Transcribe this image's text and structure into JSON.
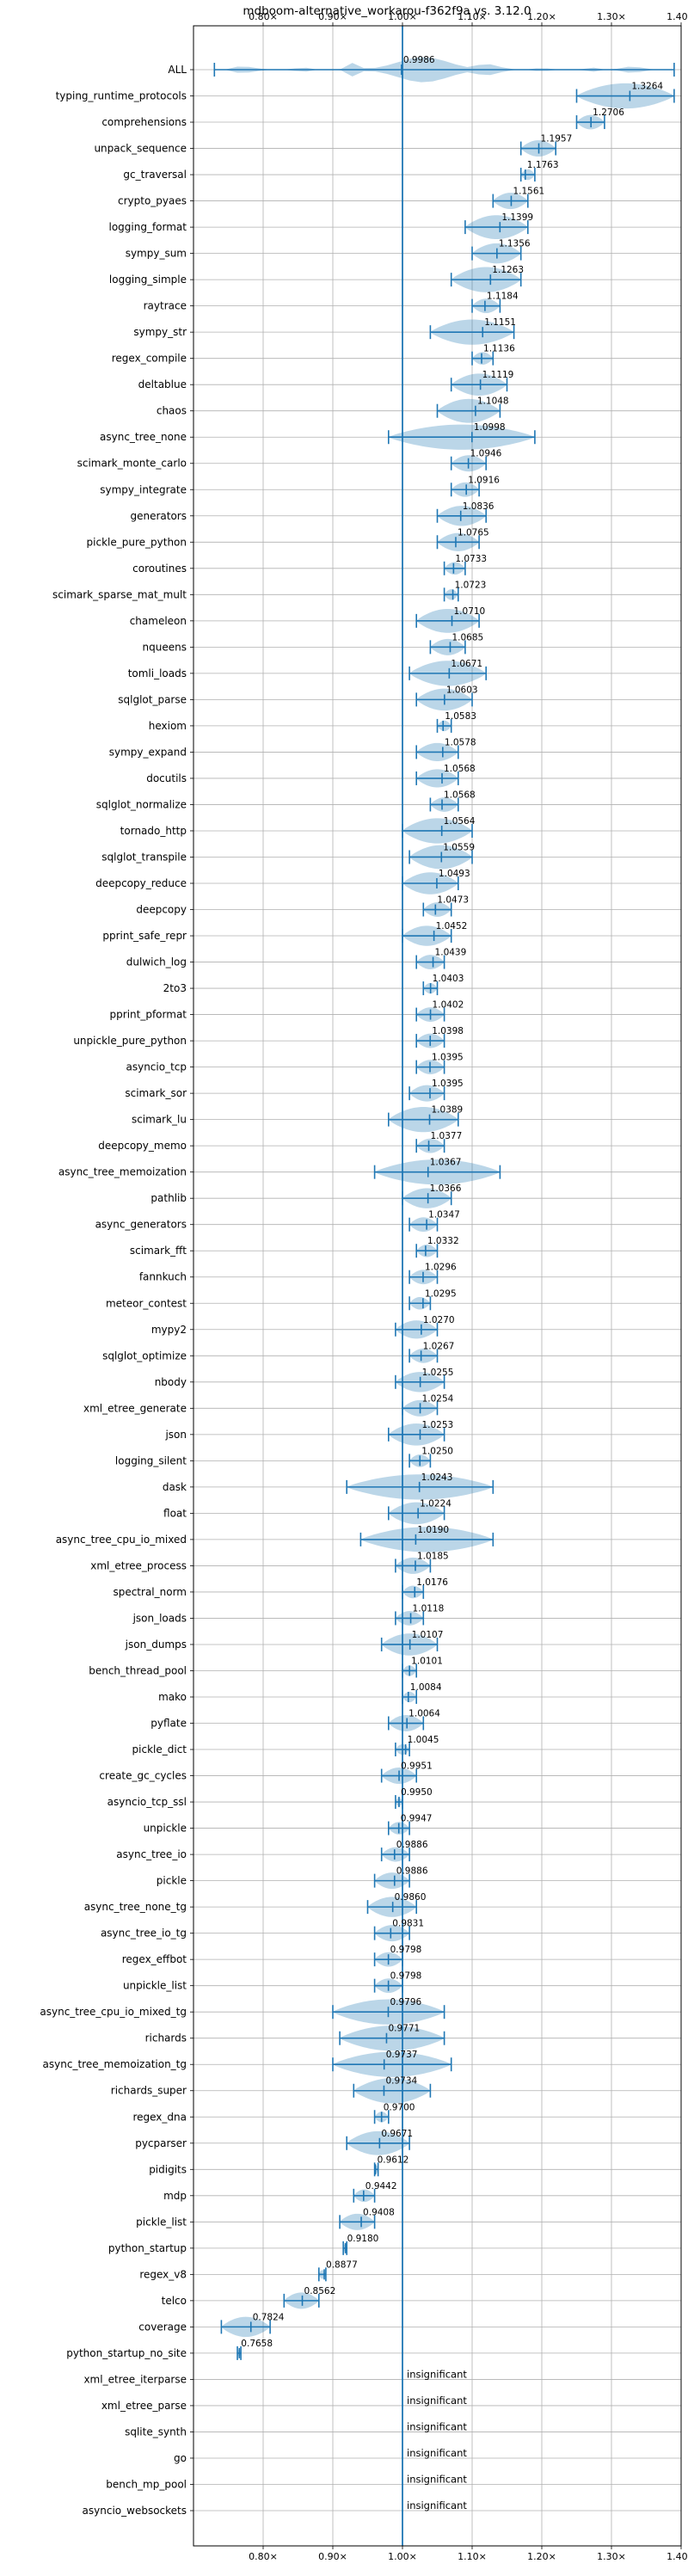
{
  "chart_data": {
    "type": "violin",
    "title": "mdboom-alternative_workarou-f362f9a vs. 3.12.0",
    "xlim": [
      0.7,
      1.4
    ],
    "x_ticks": [
      {
        "value": 0.8,
        "label": "0.80×"
      },
      {
        "value": 0.9,
        "label": "0.90×"
      },
      {
        "value": 1.0,
        "label": "1.00×"
      },
      {
        "value": 1.1,
        "label": "1.10×"
      },
      {
        "value": 1.2,
        "label": "1.20×"
      },
      {
        "value": 1.3,
        "label": "1.30×"
      },
      {
        "value": 1.4,
        "label": "1.40×"
      }
    ],
    "x_axis_position": "top and bottom",
    "grid": true,
    "reference_line": 1.0,
    "insignificant_label": "insignificant",
    "benchmarks": [
      {
        "name": "ALL",
        "value": 0.9986,
        "label": "0.9986",
        "min": 0.73,
        "max": 1.39,
        "spread": 0.05,
        "kind": "all"
      },
      {
        "name": "typing_runtime_protocols",
        "value": 1.3264,
        "label": "1.3264",
        "min": 1.25,
        "max": 1.39,
        "spread": 0.05
      },
      {
        "name": "comprehensions",
        "value": 1.2706,
        "label": "1.2706",
        "min": 1.25,
        "max": 1.29,
        "spread": 0.05
      },
      {
        "name": "unpack_sequence",
        "value": 1.1957,
        "label": "1.1957",
        "min": 1.17,
        "max": 1.22,
        "spread": 0.05
      },
      {
        "name": "gc_traversal",
        "value": 1.1763,
        "label": "1.1763",
        "min": 1.17,
        "max": 1.19,
        "spread": 0.05
      },
      {
        "name": "crypto_pyaes",
        "value": 1.1561,
        "label": "1.1561",
        "min": 1.13,
        "max": 1.18,
        "spread": 0.05
      },
      {
        "name": "logging_format",
        "value": 1.1399,
        "label": "1.1399",
        "min": 1.09,
        "max": 1.18,
        "spread": 0.05
      },
      {
        "name": "sympy_sum",
        "value": 1.1356,
        "label": "1.1356",
        "min": 1.1,
        "max": 1.17,
        "spread": 0.05
      },
      {
        "name": "logging_simple",
        "value": 1.1263,
        "label": "1.1263",
        "min": 1.07,
        "max": 1.17,
        "spread": 0.05
      },
      {
        "name": "raytrace",
        "value": 1.1184,
        "label": "1.1184",
        "min": 1.1,
        "max": 1.14,
        "spread": 0.05
      },
      {
        "name": "sympy_str",
        "value": 1.1151,
        "label": "1.1151",
        "min": 1.04,
        "max": 1.16,
        "spread": 0.05
      },
      {
        "name": "regex_compile",
        "value": 1.1136,
        "label": "1.1136",
        "min": 1.1,
        "max": 1.13,
        "spread": 0.05
      },
      {
        "name": "deltablue",
        "value": 1.1119,
        "label": "1.1119",
        "min": 1.07,
        "max": 1.15,
        "spread": 0.05
      },
      {
        "name": "chaos",
        "value": 1.1048,
        "label": "1.1048",
        "min": 1.05,
        "max": 1.14,
        "spread": 0.05
      },
      {
        "name": "async_tree_none",
        "value": 1.0998,
        "label": "1.0998",
        "min": 0.98,
        "max": 1.19,
        "spread": 0.05
      },
      {
        "name": "scimark_monte_carlo",
        "value": 1.0946,
        "label": "1.0946",
        "min": 1.07,
        "max": 1.12,
        "spread": 0.05
      },
      {
        "name": "sympy_integrate",
        "value": 1.0916,
        "label": "1.0916",
        "min": 1.07,
        "max": 1.11,
        "spread": 0.05
      },
      {
        "name": "generators",
        "value": 1.0836,
        "label": "1.0836",
        "min": 1.05,
        "max": 1.12,
        "spread": 0.05
      },
      {
        "name": "pickle_pure_python",
        "value": 1.0765,
        "label": "1.0765",
        "min": 1.05,
        "max": 1.11,
        "spread": 0.05
      },
      {
        "name": "coroutines",
        "value": 1.0733,
        "label": "1.0733",
        "min": 1.06,
        "max": 1.09,
        "spread": 0.05
      },
      {
        "name": "scimark_sparse_mat_mult",
        "value": 1.0723,
        "label": "1.0723",
        "min": 1.06,
        "max": 1.08,
        "spread": 0.05
      },
      {
        "name": "chameleon",
        "value": 1.071,
        "label": "1.0710",
        "min": 1.02,
        "max": 1.11,
        "spread": 0.05
      },
      {
        "name": "nqueens",
        "value": 1.0685,
        "label": "1.0685",
        "min": 1.04,
        "max": 1.09,
        "spread": 0.05
      },
      {
        "name": "tomli_loads",
        "value": 1.0671,
        "label": "1.0671",
        "min": 1.01,
        "max": 1.12,
        "spread": 0.05
      },
      {
        "name": "sqlglot_parse",
        "value": 1.0603,
        "label": "1.0603",
        "min": 1.02,
        "max": 1.1,
        "spread": 0.05
      },
      {
        "name": "hexiom",
        "value": 1.0583,
        "label": "1.0583",
        "min": 1.05,
        "max": 1.07,
        "spread": 0.05
      },
      {
        "name": "sympy_expand",
        "value": 1.0578,
        "label": "1.0578",
        "min": 1.02,
        "max": 1.08,
        "spread": 0.05
      },
      {
        "name": "docutils",
        "value": 1.0568,
        "label": "1.0568",
        "min": 1.02,
        "max": 1.08,
        "spread": 0.05
      },
      {
        "name": "sqlglot_normalize",
        "value": 1.0568,
        "label": "1.0568",
        "min": 1.04,
        "max": 1.08,
        "spread": 0.05
      },
      {
        "name": "tornado_http",
        "value": 1.0564,
        "label": "1.0564",
        "min": 1.0,
        "max": 1.1,
        "spread": 0.05
      },
      {
        "name": "sqlglot_transpile",
        "value": 1.0559,
        "label": "1.0559",
        "min": 1.01,
        "max": 1.1,
        "spread": 0.05
      },
      {
        "name": "deepcopy_reduce",
        "value": 1.0493,
        "label": "1.0493",
        "min": 1.0,
        "max": 1.08,
        "spread": 0.05
      },
      {
        "name": "deepcopy",
        "value": 1.0473,
        "label": "1.0473",
        "min": 1.03,
        "max": 1.07,
        "spread": 0.05
      },
      {
        "name": "pprint_safe_repr",
        "value": 1.0452,
        "label": "1.0452",
        "min": 1.0,
        "max": 1.07,
        "spread": 0.05
      },
      {
        "name": "dulwich_log",
        "value": 1.0439,
        "label": "1.0439",
        "min": 1.02,
        "max": 1.06,
        "spread": 0.05
      },
      {
        "name": "2to3",
        "value": 1.0403,
        "label": "1.0403",
        "min": 1.03,
        "max": 1.05,
        "spread": 0.05
      },
      {
        "name": "pprint_pformat",
        "value": 1.0402,
        "label": "1.0402",
        "min": 1.02,
        "max": 1.06,
        "spread": 0.05
      },
      {
        "name": "unpickle_pure_python",
        "value": 1.0398,
        "label": "1.0398",
        "min": 1.02,
        "max": 1.06,
        "spread": 0.05
      },
      {
        "name": "asyncio_tcp",
        "value": 1.0395,
        "label": "1.0395",
        "min": 1.02,
        "max": 1.06,
        "spread": 0.05
      },
      {
        "name": "scimark_sor",
        "value": 1.0395,
        "label": "1.0395",
        "min": 1.01,
        "max": 1.06,
        "spread": 0.05
      },
      {
        "name": "scimark_lu",
        "value": 1.0389,
        "label": "1.0389",
        "min": 0.98,
        "max": 1.08,
        "spread": 0.05
      },
      {
        "name": "deepcopy_memo",
        "value": 1.0377,
        "label": "1.0377",
        "min": 1.02,
        "max": 1.06,
        "spread": 0.05
      },
      {
        "name": "async_tree_memoization",
        "value": 1.0367,
        "label": "1.0367",
        "min": 0.96,
        "max": 1.14,
        "spread": 0.05
      },
      {
        "name": "pathlib",
        "value": 1.0366,
        "label": "1.0366",
        "min": 1.0,
        "max": 1.07,
        "spread": 0.05
      },
      {
        "name": "async_generators",
        "value": 1.0347,
        "label": "1.0347",
        "min": 1.01,
        "max": 1.05,
        "spread": 0.05
      },
      {
        "name": "scimark_fft",
        "value": 1.0332,
        "label": "1.0332",
        "min": 1.02,
        "max": 1.05,
        "spread": 0.05
      },
      {
        "name": "fannkuch",
        "value": 1.0296,
        "label": "1.0296",
        "min": 1.01,
        "max": 1.05,
        "spread": 0.05
      },
      {
        "name": "meteor_contest",
        "value": 1.0295,
        "label": "1.0295",
        "min": 1.01,
        "max": 1.04,
        "spread": 0.05
      },
      {
        "name": "mypy2",
        "value": 1.027,
        "label": "1.0270",
        "min": 0.99,
        "max": 1.05,
        "spread": 0.05
      },
      {
        "name": "sqlglot_optimize",
        "value": 1.0267,
        "label": "1.0267",
        "min": 1.01,
        "max": 1.05,
        "spread": 0.05
      },
      {
        "name": "nbody",
        "value": 1.0255,
        "label": "1.0255",
        "min": 0.99,
        "max": 1.06,
        "spread": 0.05
      },
      {
        "name": "xml_etree_generate",
        "value": 1.0254,
        "label": "1.0254",
        "min": 1.0,
        "max": 1.05,
        "spread": 0.05
      },
      {
        "name": "json",
        "value": 1.0253,
        "label": "1.0253",
        "min": 0.98,
        "max": 1.06,
        "spread": 0.05
      },
      {
        "name": "logging_silent",
        "value": 1.025,
        "label": "1.0250",
        "min": 1.01,
        "max": 1.04,
        "spread": 0.05
      },
      {
        "name": "dask",
        "value": 1.0243,
        "label": "1.0243",
        "min": 0.92,
        "max": 1.13,
        "spread": 0.05
      },
      {
        "name": "float",
        "value": 1.0224,
        "label": "1.0224",
        "min": 0.98,
        "max": 1.06,
        "spread": 0.05
      },
      {
        "name": "async_tree_cpu_io_mixed",
        "value": 1.019,
        "label": "1.0190",
        "min": 0.94,
        "max": 1.13,
        "spread": 0.05
      },
      {
        "name": "xml_etree_process",
        "value": 1.0185,
        "label": "1.0185",
        "min": 0.99,
        "max": 1.04,
        "spread": 0.05
      },
      {
        "name": "spectral_norm",
        "value": 1.0176,
        "label": "1.0176",
        "min": 1.0,
        "max": 1.03,
        "spread": 0.05
      },
      {
        "name": "json_loads",
        "value": 1.0118,
        "label": "1.0118",
        "min": 0.99,
        "max": 1.03,
        "spread": 0.05
      },
      {
        "name": "json_dumps",
        "value": 1.0107,
        "label": "1.0107",
        "min": 0.97,
        "max": 1.05,
        "spread": 0.05
      },
      {
        "name": "bench_thread_pool",
        "value": 1.0101,
        "label": "1.0101",
        "min": 1.0,
        "max": 1.02,
        "spread": 0.05
      },
      {
        "name": "mako",
        "value": 1.0084,
        "label": "1.0084",
        "min": 1.0,
        "max": 1.02,
        "spread": 0.05
      },
      {
        "name": "pyflate",
        "value": 1.0064,
        "label": "1.0064",
        "min": 0.98,
        "max": 1.03,
        "spread": 0.05
      },
      {
        "name": "pickle_dict",
        "value": 1.0045,
        "label": "1.0045",
        "min": 0.99,
        "max": 1.01,
        "spread": 0.05
      },
      {
        "name": "create_gc_cycles",
        "value": 0.9951,
        "label": "0.9951",
        "min": 0.97,
        "max": 1.02,
        "spread": 0.05
      },
      {
        "name": "asyncio_tcp_ssl",
        "value": 0.995,
        "label": "0.9950",
        "min": 0.99,
        "max": 1.0,
        "spread": 0.05
      },
      {
        "name": "unpickle",
        "value": 0.9947,
        "label": "0.9947",
        "min": 0.98,
        "max": 1.01,
        "spread": 0.05
      },
      {
        "name": "async_tree_io",
        "value": 0.9886,
        "label": "0.9886",
        "min": 0.97,
        "max": 1.01,
        "spread": 0.05
      },
      {
        "name": "pickle",
        "value": 0.9886,
        "label": "0.9886",
        "min": 0.96,
        "max": 1.01,
        "spread": 0.05
      },
      {
        "name": "async_tree_none_tg",
        "value": 0.986,
        "label": "0.9860",
        "min": 0.95,
        "max": 1.02,
        "spread": 0.05
      },
      {
        "name": "async_tree_io_tg",
        "value": 0.9831,
        "label": "0.9831",
        "min": 0.96,
        "max": 1.01,
        "spread": 0.05
      },
      {
        "name": "regex_effbot",
        "value": 0.9798,
        "label": "0.9798",
        "min": 0.96,
        "max": 1.0,
        "spread": 0.05
      },
      {
        "name": "unpickle_list",
        "value": 0.9798,
        "label": "0.9798",
        "min": 0.96,
        "max": 1.0,
        "spread": 0.05
      },
      {
        "name": "async_tree_cpu_io_mixed_tg",
        "value": 0.9796,
        "label": "0.9796",
        "min": 0.9,
        "max": 1.06,
        "spread": 0.05
      },
      {
        "name": "richards",
        "value": 0.9771,
        "label": "0.9771",
        "min": 0.91,
        "max": 1.06,
        "spread": 0.05
      },
      {
        "name": "async_tree_memoization_tg",
        "value": 0.9737,
        "label": "0.9737",
        "min": 0.9,
        "max": 1.07,
        "spread": 0.05
      },
      {
        "name": "richards_super",
        "value": 0.9734,
        "label": "0.9734",
        "min": 0.93,
        "max": 1.04,
        "spread": 0.05
      },
      {
        "name": "regex_dna",
        "value": 0.97,
        "label": "0.9700",
        "min": 0.96,
        "max": 0.98,
        "spread": 0.05
      },
      {
        "name": "pycparser",
        "value": 0.9671,
        "label": "0.9671",
        "min": 0.92,
        "max": 1.01,
        "spread": 0.05
      },
      {
        "name": "pidigits",
        "value": 0.9612,
        "label": "0.9612",
        "min": 0.96,
        "max": 0.965,
        "spread": 0.05
      },
      {
        "name": "mdp",
        "value": 0.9442,
        "label": "0.9442",
        "min": 0.93,
        "max": 0.96,
        "spread": 0.05
      },
      {
        "name": "pickle_list",
        "value": 0.9408,
        "label": "0.9408",
        "min": 0.91,
        "max": 0.96,
        "spread": 0.05
      },
      {
        "name": "python_startup",
        "value": 0.918,
        "label": "0.9180",
        "min": 0.915,
        "max": 0.92,
        "spread": 0.05
      },
      {
        "name": "regex_v8",
        "value": 0.8877,
        "label": "0.8877",
        "min": 0.88,
        "max": 0.89,
        "spread": 0.05
      },
      {
        "name": "telco",
        "value": 0.8562,
        "label": "0.8562",
        "min": 0.83,
        "max": 0.88,
        "spread": 0.05
      },
      {
        "name": "coverage",
        "value": 0.7824,
        "label": "0.7824",
        "min": 0.74,
        "max": 0.81,
        "spread": 0.05
      },
      {
        "name": "python_startup_no_site",
        "value": 0.7658,
        "label": "0.7658",
        "min": 0.763,
        "max": 0.768,
        "spread": 0.05
      },
      {
        "name": "xml_etree_iterparse",
        "insignificant": true
      },
      {
        "name": "xml_etree_parse",
        "insignificant": true
      },
      {
        "name": "sqlite_synth",
        "insignificant": true
      },
      {
        "name": "go",
        "insignificant": true
      },
      {
        "name": "bench_mp_pool",
        "insignificant": true
      },
      {
        "name": "asyncio_websockets",
        "insignificant": true
      }
    ]
  }
}
